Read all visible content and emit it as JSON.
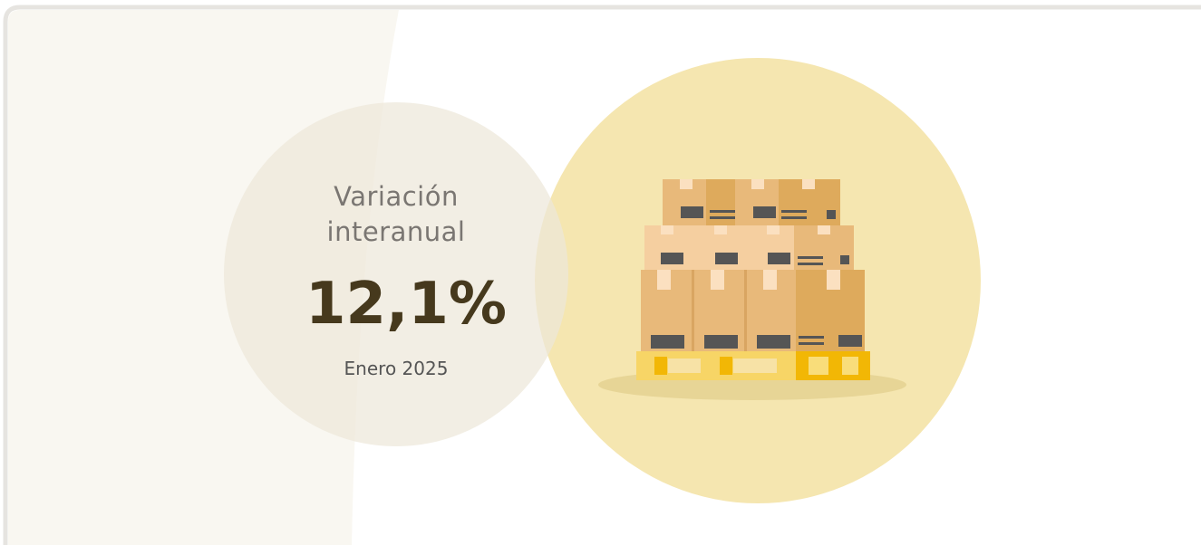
{
  "card": {
    "label": "Variación interanual",
    "value": "12,1%",
    "period": "Enero 2025"
  }
}
